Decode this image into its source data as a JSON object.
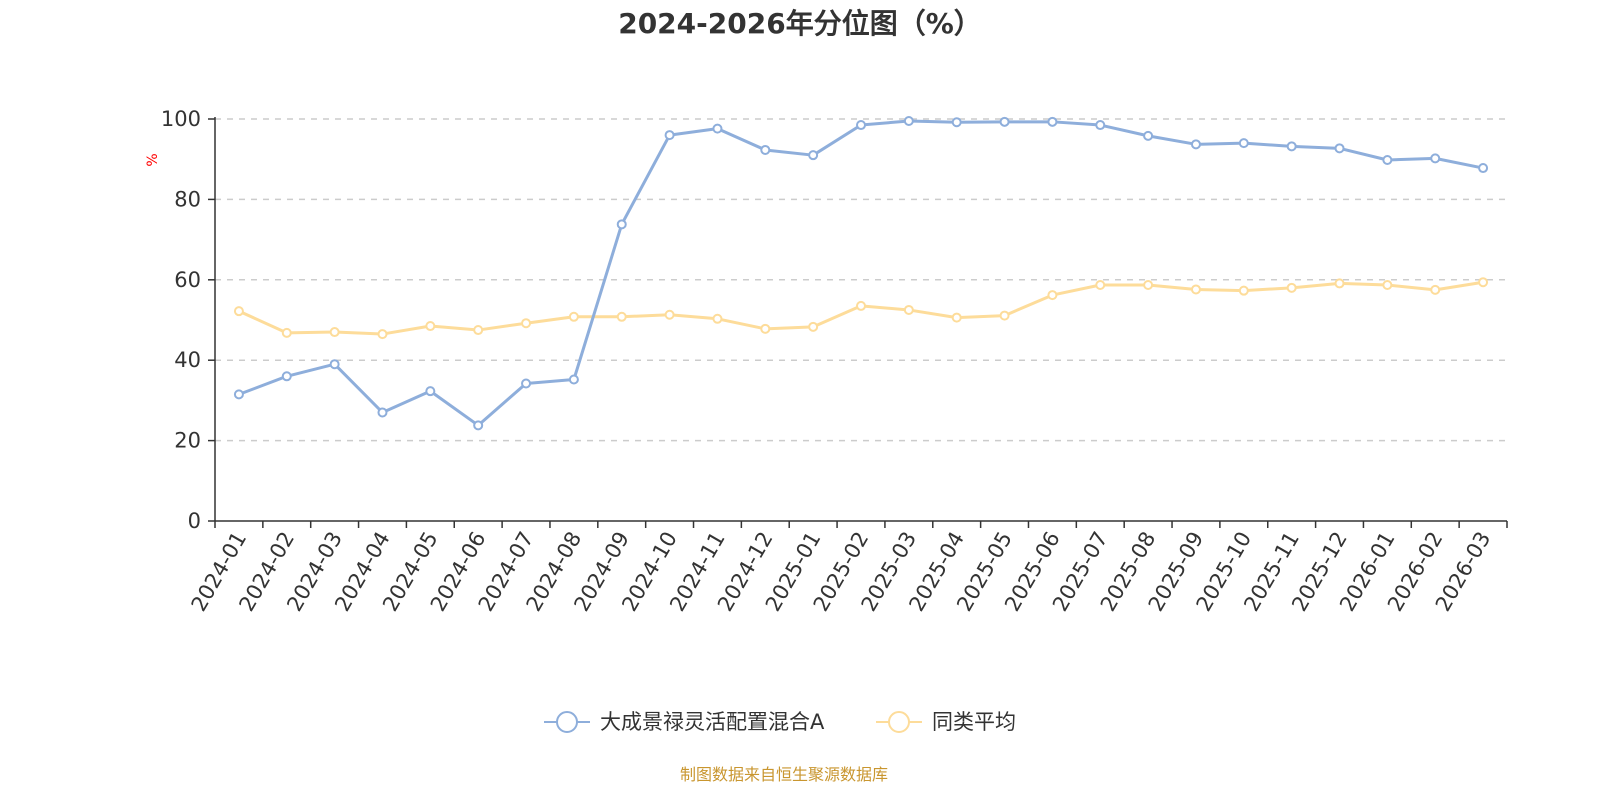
{
  "chart_data": {
    "type": "line",
    "title": "2024-2026年分位图（%）",
    "ylabel": "%",
    "ylim": [
      0,
      100
    ],
    "yticks": [
      0,
      20,
      40,
      60,
      80,
      100
    ],
    "grid": true,
    "legend_position": "bottom-center",
    "categories": [
      "2024-01",
      "2024-02",
      "2024-03",
      "2024-04",
      "2024-05",
      "2024-06",
      "2024-07",
      "2024-08",
      "2024-09",
      "2024-10",
      "2024-11",
      "2024-12",
      "2025-01",
      "2025-02",
      "2025-03",
      "2025-04",
      "2025-05",
      "2025-06",
      "2025-07",
      "2025-08",
      "2025-09",
      "2025-10",
      "2025-11",
      "2025-12",
      "2026-01",
      "2026-02",
      "2026-03"
    ],
    "series": [
      {
        "name": "大成景禄灵活配置混合A",
        "color": "#8eaedb",
        "values": [
          31.5,
          36.0,
          39.0,
          27.0,
          32.3,
          23.8,
          34.2,
          35.2,
          73.8,
          96.0,
          97.6,
          92.3,
          91.0,
          98.5,
          99.5,
          99.2,
          99.3,
          99.3,
          98.5,
          95.8,
          93.7,
          94.0,
          93.2,
          92.7,
          89.8,
          90.2,
          87.8
        ]
      },
      {
        "name": "同类平均",
        "color": "#fddc9a",
        "values": [
          52.2,
          46.8,
          47.0,
          46.5,
          48.5,
          47.5,
          49.2,
          50.8,
          50.8,
          51.3,
          50.3,
          47.8,
          48.3,
          53.5,
          52.5,
          50.6,
          51.1,
          56.2,
          58.7,
          58.7,
          57.6,
          57.3,
          58.0,
          59.1,
          58.7,
          57.5,
          59.4
        ]
      }
    ]
  },
  "footer": "制图数据来自恒生聚源数据库",
  "colors": {
    "footer": "#c9962f",
    "ylabel": "#ff0000"
  }
}
